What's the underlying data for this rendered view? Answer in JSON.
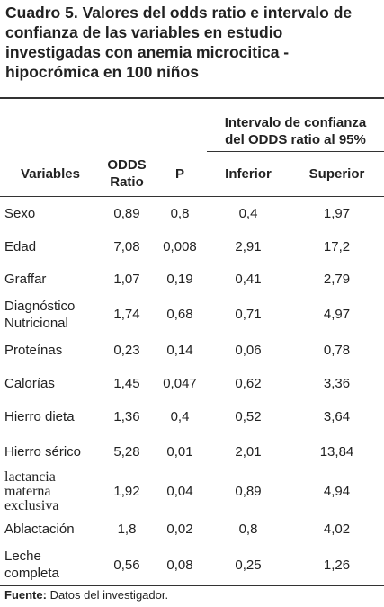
{
  "title_lines": [
    "Cuadro 5. Valores del odds ratio e intervalo de",
    "confianza de las variables en estudio",
    "investigadas con anemia microcitica -",
    "hipocrómica en 100 niños"
  ],
  "table": {
    "group_header": "Intervalo de confianza\ndel ODDS ratio al 95%",
    "columns": [
      "Variables",
      "ODDS\nRatio",
      "P",
      "Inferior",
      "Superior"
    ],
    "rows": [
      [
        "Sexo",
        "0,89",
        "0,8",
        "0,4",
        "1,97"
      ],
      [
        "Edad",
        "7,08",
        "0,008",
        "2,91",
        "17,2"
      ],
      [
        "Graffar",
        "1,07",
        "0,19",
        "0,41",
        "2,79"
      ],
      [
        "Diagnóstico\nNutricional",
        "1,74",
        "0,68",
        "0,71",
        "4,97"
      ],
      [
        "Proteínas",
        "0,23",
        "0,14",
        "0,06",
        "0,78"
      ],
      [
        "Calorías",
        "1,45",
        "0,047",
        "0,62",
        "3,36"
      ],
      [
        "Hierro dieta",
        "1,36",
        "0,4",
        "0,52",
        "3,64"
      ],
      [
        "Hierro sérico",
        "5,28",
        "0,01",
        "2,01",
        "13,84"
      ],
      [
        "lactancia\nmaterna\nexclusiva",
        "1,92",
        "0,04",
        "0,89",
        "4,94"
      ],
      [
        "Ablactación",
        "1,8",
        "0,02",
        "0,8",
        "4,02"
      ],
      [
        "Leche\ncompleta",
        "0,56",
        "0,08",
        "0,25",
        "1,26"
      ]
    ]
  },
  "footer": {
    "label": "Fuente:",
    "text": " Datos del investigador."
  }
}
